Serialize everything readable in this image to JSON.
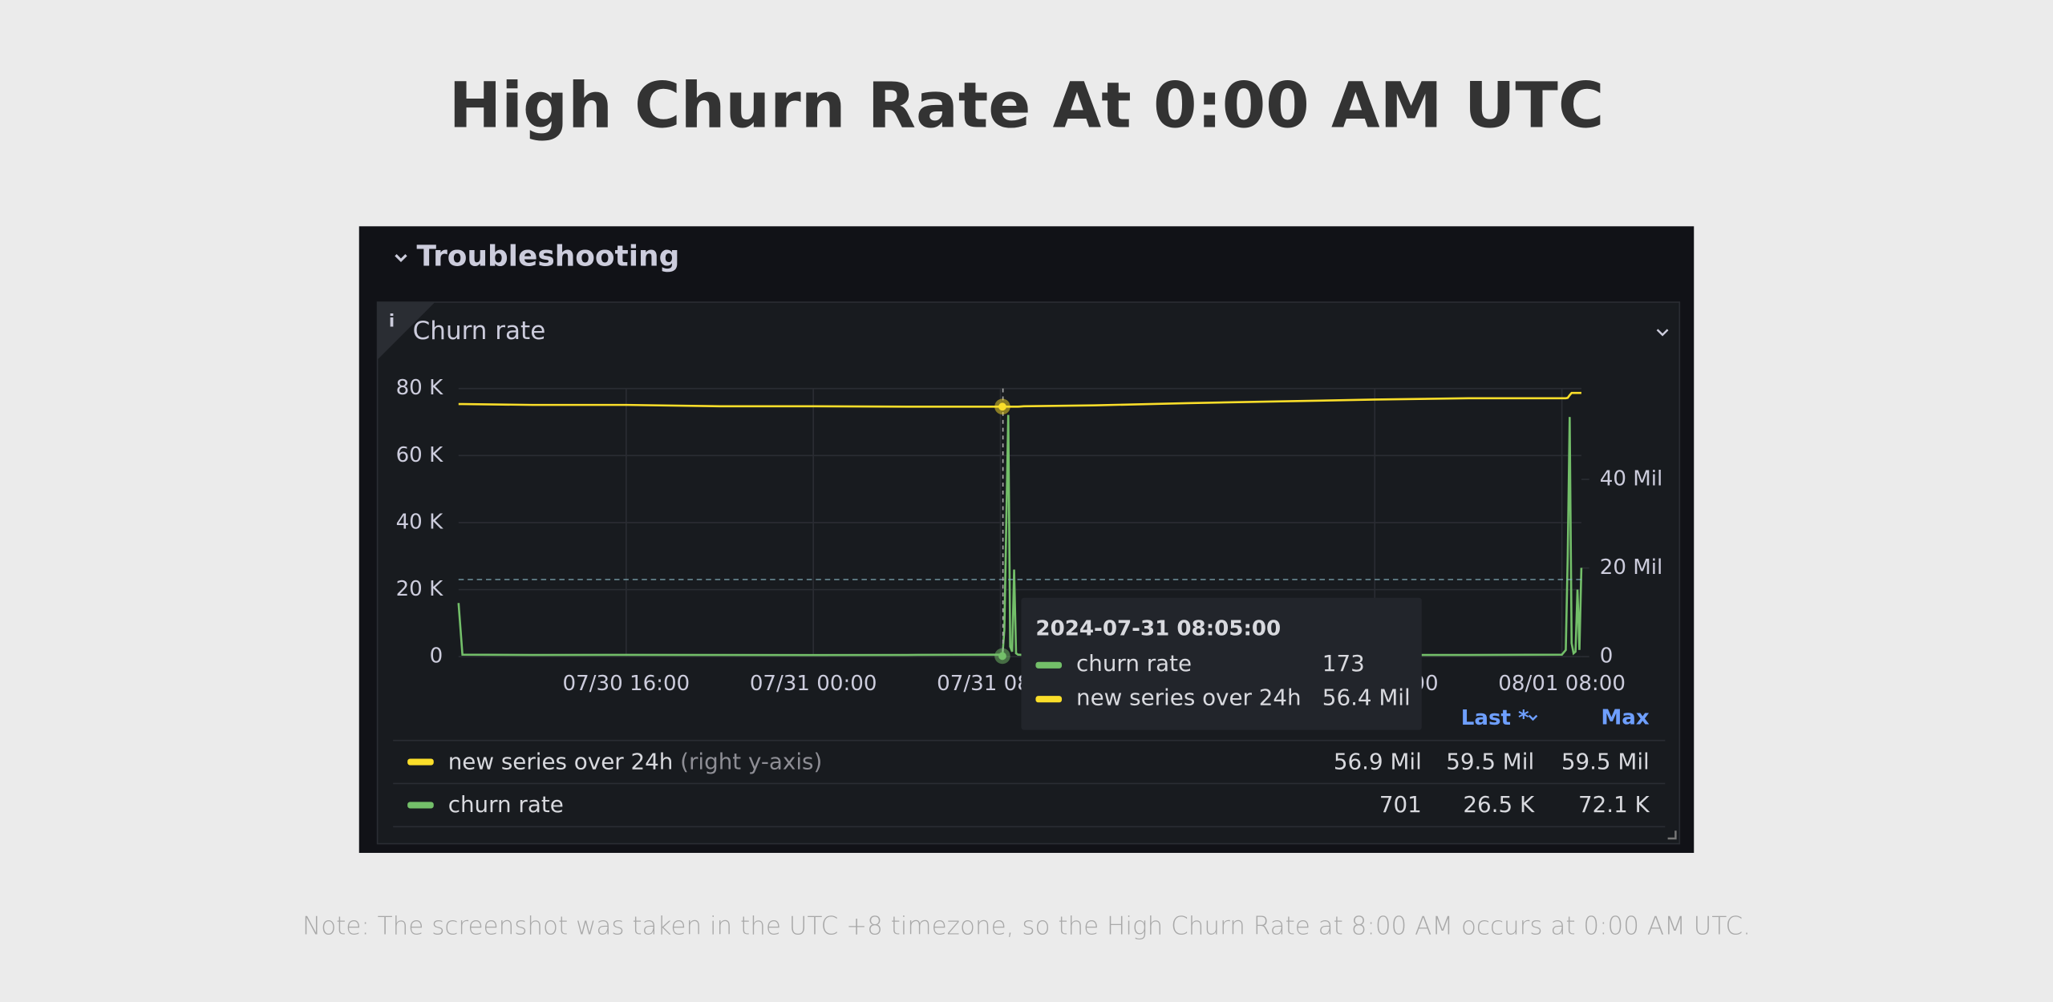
{
  "title": "High Churn Rate At 0:00 AM UTC",
  "row_title": "Troubleshooting",
  "panel_title": "Churn rate",
  "chart_data": {
    "type": "line",
    "x": [
      "07/30 08:50",
      "07/30 09:00",
      "07/30 12:00",
      "07/30 16:00",
      "07/30 20:00",
      "07/31 00:00",
      "07/31 04:00",
      "07/31 08:00",
      "07/31 08:05",
      "07/31 08:10",
      "07/31 08:15",
      "07/31 08:20",
      "07/31 08:25",
      "07/31 08:30",
      "07/31 08:35",
      "07/31 08:40",
      "07/31 08:45",
      "07/31 09:00",
      "07/31 12:00",
      "07/31 16:00",
      "07/31 20:00",
      "08/01 00:00",
      "08/01 04:00",
      "08/01 08:00",
      "08/01 08:10",
      "08/01 08:15",
      "08/01 08:20",
      "08/01 08:25",
      "08/01 08:30",
      "08/01 08:35",
      "08/01 08:40",
      "08/01 08:45",
      "08/01 08:50"
    ],
    "xlim": [
      "07/30 08:50",
      "08/01 08:50"
    ],
    "xticks": [
      "07/30 16:00",
      "07/31 00:00",
      "07/31 08:00",
      "08/01 00:00",
      "08/01 08:00"
    ],
    "ylim": [
      0,
      80000
    ],
    "yticks": [
      0,
      {
        "value": 20000,
        "label": "20 K"
      },
      {
        "value": 40000,
        "label": "40 K"
      },
      {
        "value": 60000,
        "label": "60 K"
      },
      {
        "value": 80000,
        "label": "80 K"
      }
    ],
    "y2lim": [
      0,
      60500000
    ],
    "y2ticks": [
      0,
      {
        "value": 20000000,
        "label": "20 Mil"
      },
      {
        "value": 40000000,
        "label": "40 Mil"
      }
    ],
    "grid": true,
    "series": [
      {
        "name": "churn rate",
        "color": "#73bf69",
        "values": [
          16000,
          600,
          500,
          550,
          500,
          480,
          520,
          600,
          173,
          8000,
          40000,
          72100,
          3000,
          1500,
          26000,
          1000,
          600,
          500,
          500,
          500,
          500,
          500,
          500,
          600,
          2000,
          30000,
          71500,
          4000,
          1000,
          1500,
          20000,
          2000,
          26500
        ]
      },
      {
        "name": "new series over 24h",
        "color": "#fade2a",
        "axis": "y2",
        "values": [
          57000000,
          57000000,
          56800000,
          56800000,
          56500000,
          56500000,
          56400000,
          56400000,
          56400000,
          56400000,
          56400000,
          56400000,
          56400000,
          56400000,
          56400000,
          56400000,
          56400000,
          56500000,
          56700000,
          57200000,
          57600000,
          58000000,
          58300000,
          58300000,
          58300000,
          58400000,
          59000000,
          59500000,
          59500000,
          59500000,
          59500000,
          59500000,
          59500000
        ]
      }
    ]
  },
  "legend": {
    "headers": [
      "Last *",
      "Max"
    ],
    "axis_note": "(right y-axis)",
    "rows": [
      [
        "56.9 Mil",
        "59.5 Mil",
        "59.5 Mil"
      ],
      [
        "701",
        "26.5 K",
        "72.1 K"
      ]
    ]
  },
  "tooltip": {
    "time": "2024-07-31 08:05:00",
    "values": [
      "173",
      "56.4 Mil"
    ]
  },
  "note": "Note: The screenshot was taken in the UTC +8 timezone, so the High Churn Rate at 8:00 AM occurs at 0:00 AM UTC."
}
